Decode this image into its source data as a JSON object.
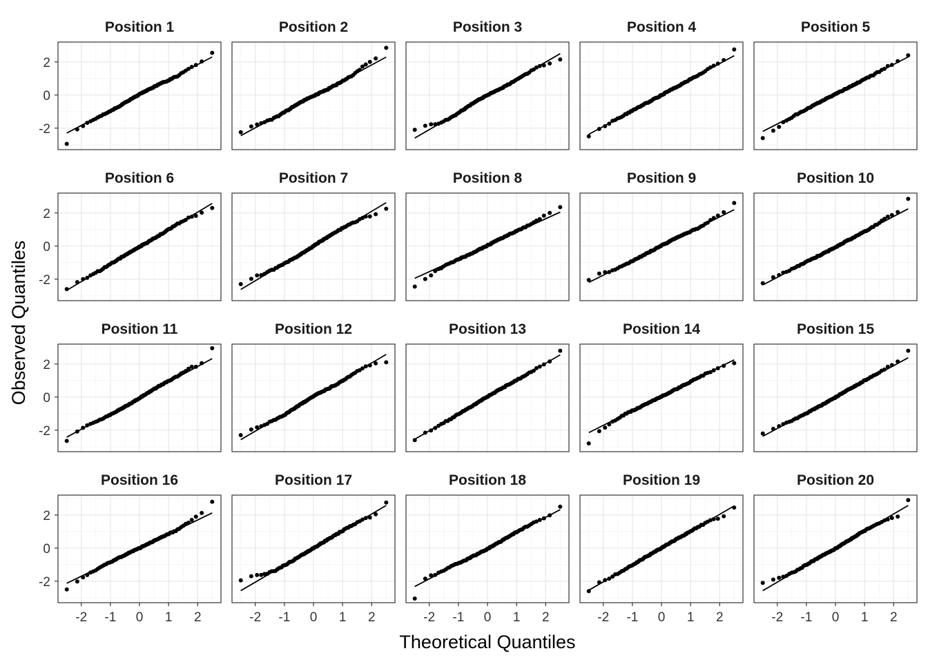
{
  "chart_data": {
    "type": "scatter",
    "subtype": "qq-plot facet grid",
    "xlabel": "Theoretical Quantiles",
    "ylabel": "Observed Quantiles",
    "layout": {
      "rows": 4,
      "cols": 5
    },
    "xlim": [
      -2.8,
      2.8
    ],
    "ylim": [
      -3.3,
      3.2
    ],
    "xticks": [
      -2,
      -1,
      0,
      1,
      2
    ],
    "xtick_labels": [
      "-2",
      "-1",
      "0",
      "1",
      "2"
    ],
    "yticks": [
      -2,
      0,
      2
    ],
    "ytick_labels": [
      "-2",
      "0",
      "2"
    ],
    "grid": true,
    "points_per_panel": 100,
    "panels": [
      {
        "title": "Position 1",
        "line": {
          "intercept": 0.0,
          "slope": 0.92
        },
        "ends": [
          -2.95,
          2.55
        ],
        "tail_low": [
          -0.15,
          -0.05
        ],
        "tail_high": [
          0.05,
          0.15
        ]
      },
      {
        "title": "Position 2",
        "line": {
          "intercept": -0.08,
          "slope": 0.95
        },
        "ends": [
          -2.25,
          2.85
        ],
        "tail_low": [
          0.25,
          0.2
        ],
        "tail_high": [
          0.25,
          0.35
        ]
      },
      {
        "title": "Position 3",
        "line": {
          "intercept": -0.05,
          "slope": 1.02
        },
        "ends": [
          -2.1,
          2.15
        ],
        "tail_low": [
          0.4,
          0.3
        ],
        "tail_high": [
          -0.3,
          -0.1
        ]
      },
      {
        "title": "Position 4",
        "line": {
          "intercept": 0.0,
          "slope": 0.95
        },
        "ends": [
          -2.5,
          2.75
        ],
        "tail_low": [
          -0.05,
          0.0
        ],
        "tail_high": [
          0.1,
          0.15
        ]
      },
      {
        "title": "Position 5",
        "line": {
          "intercept": 0.05,
          "slope": 0.9
        },
        "ends": [
          -2.6,
          2.4
        ],
        "tail_low": [
          -0.35,
          -0.2
        ],
        "tail_high": [
          0.05,
          0.1
        ]
      },
      {
        "title": "Position 6",
        "line": {
          "intercept": -0.05,
          "slope": 1.05
        },
        "ends": [
          -2.6,
          2.3
        ],
        "tail_low": [
          0.15,
          0.1
        ],
        "tail_high": [
          -0.25,
          -0.1
        ]
      },
      {
        "title": "Position 7",
        "line": {
          "intercept": 0.0,
          "slope": 1.05
        },
        "ends": [
          -2.3,
          2.25
        ],
        "tail_low": [
          0.3,
          0.15
        ],
        "tail_high": [
          -0.3,
          -0.15
        ]
      },
      {
        "title": "Position 8",
        "line": {
          "intercept": 0.05,
          "slope": 0.8
        },
        "ends": [
          -2.45,
          2.35
        ],
        "tail_low": [
          -0.45,
          -0.3
        ],
        "tail_high": [
          0.3,
          0.3
        ]
      },
      {
        "title": "Position 9",
        "line": {
          "intercept": 0.0,
          "slope": 0.88
        },
        "ends": [
          -2.05,
          2.6
        ],
        "tail_low": [
          0.2,
          0.05
        ],
        "tail_high": [
          0.2,
          0.25
        ]
      },
      {
        "title": "Position 10",
        "line": {
          "intercept": -0.05,
          "slope": 0.92
        },
        "ends": [
          -2.25,
          2.85
        ],
        "tail_low": [
          0.15,
          0.1
        ],
        "tail_high": [
          0.2,
          0.3
        ]
      },
      {
        "title": "Position 11",
        "line": {
          "intercept": -0.05,
          "slope": 0.95
        },
        "ends": [
          -2.65,
          2.95
        ],
        "tail_low": [
          -0.05,
          0.0
        ],
        "tail_high": [
          0.1,
          0.25
        ]
      },
      {
        "title": "Position 12",
        "line": {
          "intercept": 0.0,
          "slope": 1.03
        },
        "ends": [
          -2.3,
          2.1
        ],
        "tail_low": [
          0.25,
          0.15
        ],
        "tail_high": [
          -0.2,
          -0.1
        ]
      },
      {
        "title": "Position 13",
        "line": {
          "intercept": 0.0,
          "slope": 1.02
        },
        "ends": [
          -2.6,
          2.8
        ],
        "tail_low": [
          0.0,
          0.0
        ],
        "tail_high": [
          0.0,
          0.05
        ]
      },
      {
        "title": "Position 14",
        "line": {
          "intercept": 0.05,
          "slope": 0.88
        },
        "ends": [
          -2.8,
          2.05
        ],
        "tail_low": [
          -0.3,
          -0.25
        ],
        "tail_high": [
          -0.05,
          -0.05
        ]
      },
      {
        "title": "Position 15",
        "line": {
          "intercept": 0.0,
          "slope": 0.95
        },
        "ends": [
          -2.2,
          2.8
        ],
        "tail_low": [
          0.1,
          0.05
        ],
        "tail_high": [
          0.15,
          0.2
        ]
      },
      {
        "title": "Position 16",
        "line": {
          "intercept": 0.0,
          "slope": 0.85
        },
        "ends": [
          -2.5,
          2.8
        ],
        "tail_low": [
          -0.2,
          -0.15
        ],
        "tail_high": [
          0.35,
          0.3
        ]
      },
      {
        "title": "Position 17",
        "line": {
          "intercept": 0.0,
          "slope": 1.03
        },
        "ends": [
          -1.95,
          2.75
        ],
        "tail_low": [
          0.55,
          0.35
        ],
        "tail_high": [
          -0.2,
          -0.1
        ]
      },
      {
        "title": "Position 18",
        "line": {
          "intercept": 0.0,
          "slope": 0.93
        },
        "ends": [
          -3.05,
          2.5
        ],
        "tail_low": [
          0.15,
          0.05
        ],
        "tail_high": [
          0.0,
          0.05
        ]
      },
      {
        "title": "Position 19",
        "line": {
          "intercept": 0.0,
          "slope": 1.02
        },
        "ends": [
          -2.6,
          2.45
        ],
        "tail_low": [
          0.1,
          0.05
        ],
        "tail_high": [
          -0.3,
          -0.15
        ]
      },
      {
        "title": "Position 20",
        "line": {
          "intercept": 0.0,
          "slope": 1.03
        },
        "ends": [
          -2.1,
          2.9
        ],
        "tail_low": [
          0.4,
          0.25
        ],
        "tail_high": [
          -0.3,
          -0.15
        ]
      }
    ]
  }
}
